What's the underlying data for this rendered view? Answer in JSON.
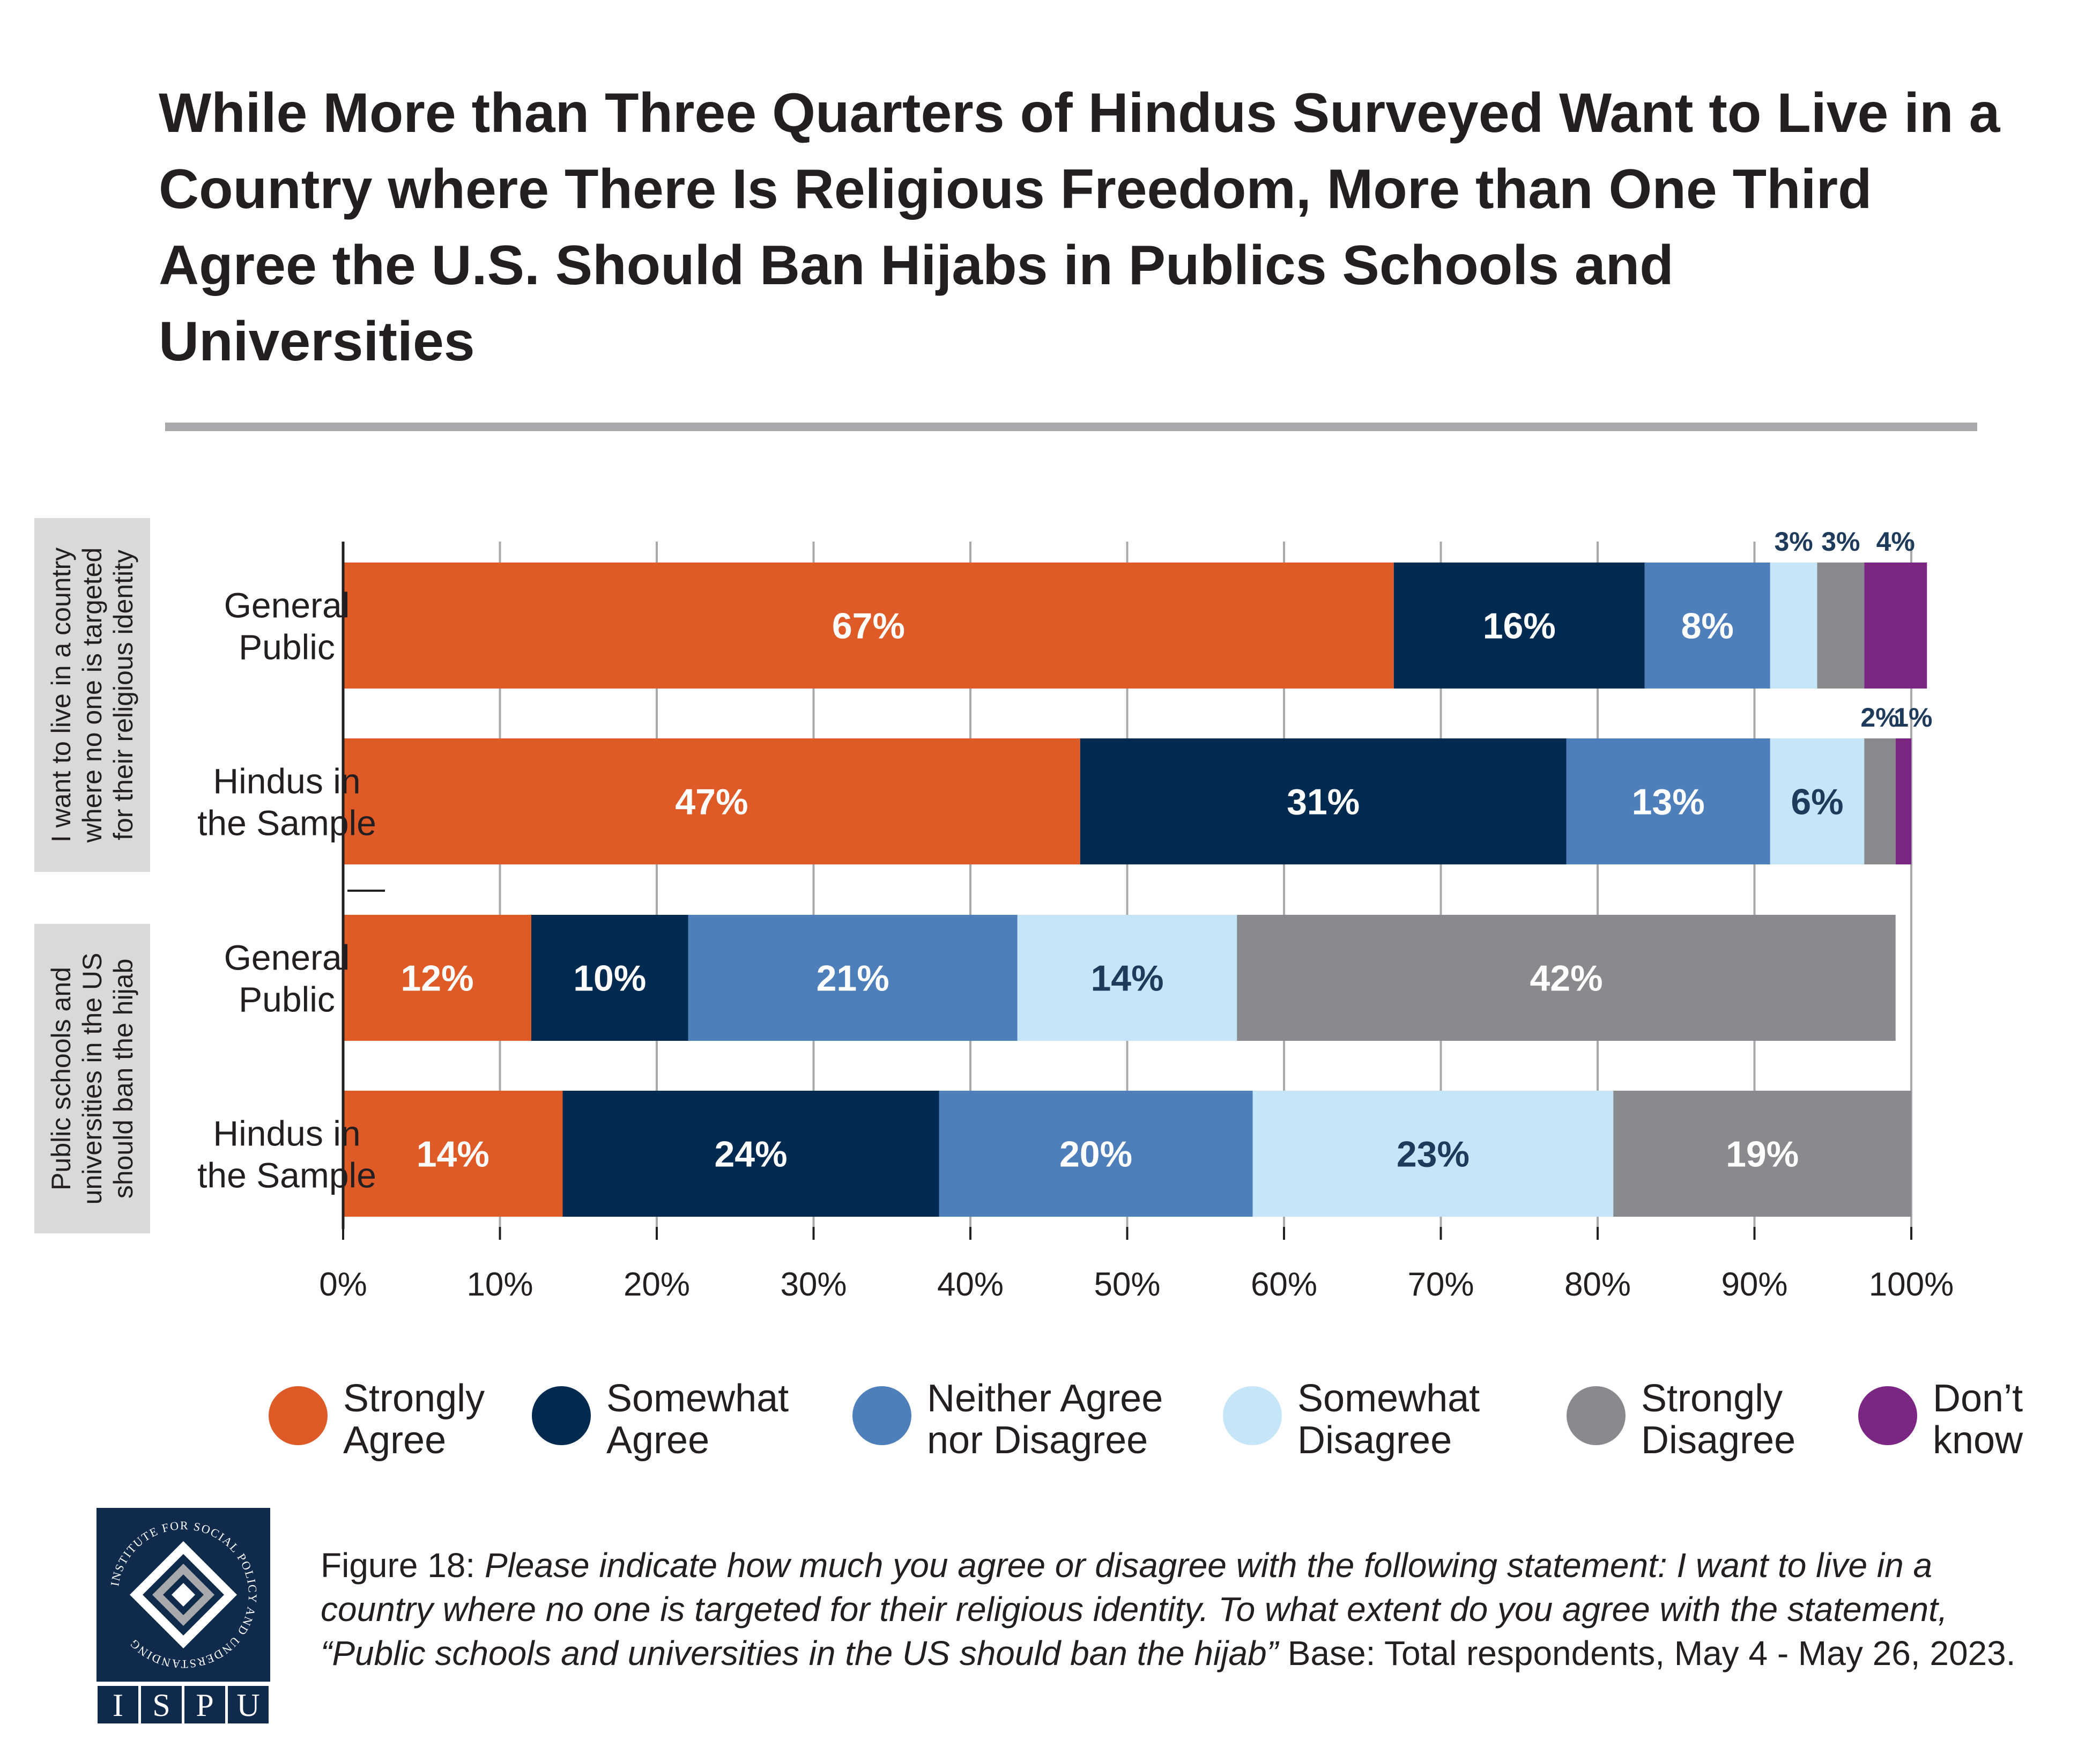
{
  "title": "While More than Three Quarters of Hindus Surveyed Want to Live in a Country where There Is Religious Freedom, More than One Third Agree the U.S. Should Ban Hijabs in Publics Schools and Universities",
  "caption": {
    "figure_label": "Figure 18:",
    "question_text": "Please indicate how much you agree or disagree with the following statement: I want to live in a country where no one is targeted for their religious identity. To what extent do you agree with the statement, “Public schools and universities in the US should ban the hijab”",
    "base_text": " Base: Total respondents, May 4 - May 26, 2023."
  },
  "logo": {
    "text_ring": "INSTITUTE FOR SOCIAL POLICY AND UNDERSTANDING",
    "letters": [
      "I",
      "S",
      "P",
      "U"
    ]
  },
  "chart_data": {
    "type": "bar",
    "orientation": "horizontal",
    "stacked": true,
    "xlim": [
      0,
      100
    ],
    "x_ticks": [
      "0%",
      "10%",
      "20%",
      "30%",
      "40%",
      "50%",
      "60%",
      "70%",
      "80%",
      "90%",
      "100%"
    ],
    "grid": true,
    "legend_position": "bottom",
    "groups": [
      {
        "label": [
          "I want to live in a country",
          "where no one is targeted",
          "for their religious identity"
        ]
      },
      {
        "label": [
          "Public schools and",
          "universities in the US",
          "should ban the hijab"
        ]
      }
    ],
    "categories": [
      {
        "group": 0,
        "label": [
          "General",
          "Public"
        ]
      },
      {
        "group": 0,
        "label": [
          "Hindus in",
          "the Sample"
        ]
      },
      {
        "group": 1,
        "label": [
          "General",
          "Public"
        ]
      },
      {
        "group": 1,
        "label": [
          "Hindus in",
          "the Sample"
        ]
      }
    ],
    "series": [
      {
        "name": "Strongly Agree",
        "legend_lines": [
          "Strongly",
          "Agree"
        ],
        "color": "#de5a26",
        "label_color": "#ffffff",
        "values": [
          67,
          47,
          12,
          14
        ]
      },
      {
        "name": "Somewhat Agree",
        "legend_lines": [
          "Somewhat",
          "Agree"
        ],
        "color": "#002a50",
        "label_color": "#ffffff",
        "values": [
          16,
          31,
          10,
          24
        ]
      },
      {
        "name": "Neither Agree nor Disagree",
        "legend_lines": [
          "Neither Agree",
          "nor Disagree"
        ],
        "color": "#4f7fba",
        "label_color": "#ffffff",
        "values": [
          8,
          13,
          21,
          20
        ]
      },
      {
        "name": "Somewhat Disagree",
        "legend_lines": [
          "Somewhat",
          "Disagree"
        ],
        "color": "#c5e6f8",
        "label_color": "#1f3b5c",
        "values": [
          3,
          6,
          14,
          23
        ]
      },
      {
        "name": "Strongly Disagree",
        "legend_lines": [
          "Strongly",
          "Disagree"
        ],
        "color": "#898a8d",
        "label_color": "#ffffff",
        "values": [
          3,
          2,
          42,
          19
        ]
      },
      {
        "name": "Don’t know",
        "legend_lines": [
          "Don’t",
          "know"
        ],
        "color": "#7b2683",
        "label_color": "#ffffff",
        "values": [
          4,
          1,
          0,
          0
        ]
      }
    ],
    "data_labels": [
      [
        "67%",
        "16%",
        "8%",
        "3%",
        "3%",
        "4%"
      ],
      [
        "47%",
        "31%",
        "13%",
        "6%",
        "2%",
        "1%"
      ],
      [
        "12%",
        "10%",
        "21%",
        "14%",
        "42%",
        ""
      ],
      [
        "14%",
        "24%",
        "20%",
        "23%",
        "19%",
        ""
      ]
    ]
  }
}
